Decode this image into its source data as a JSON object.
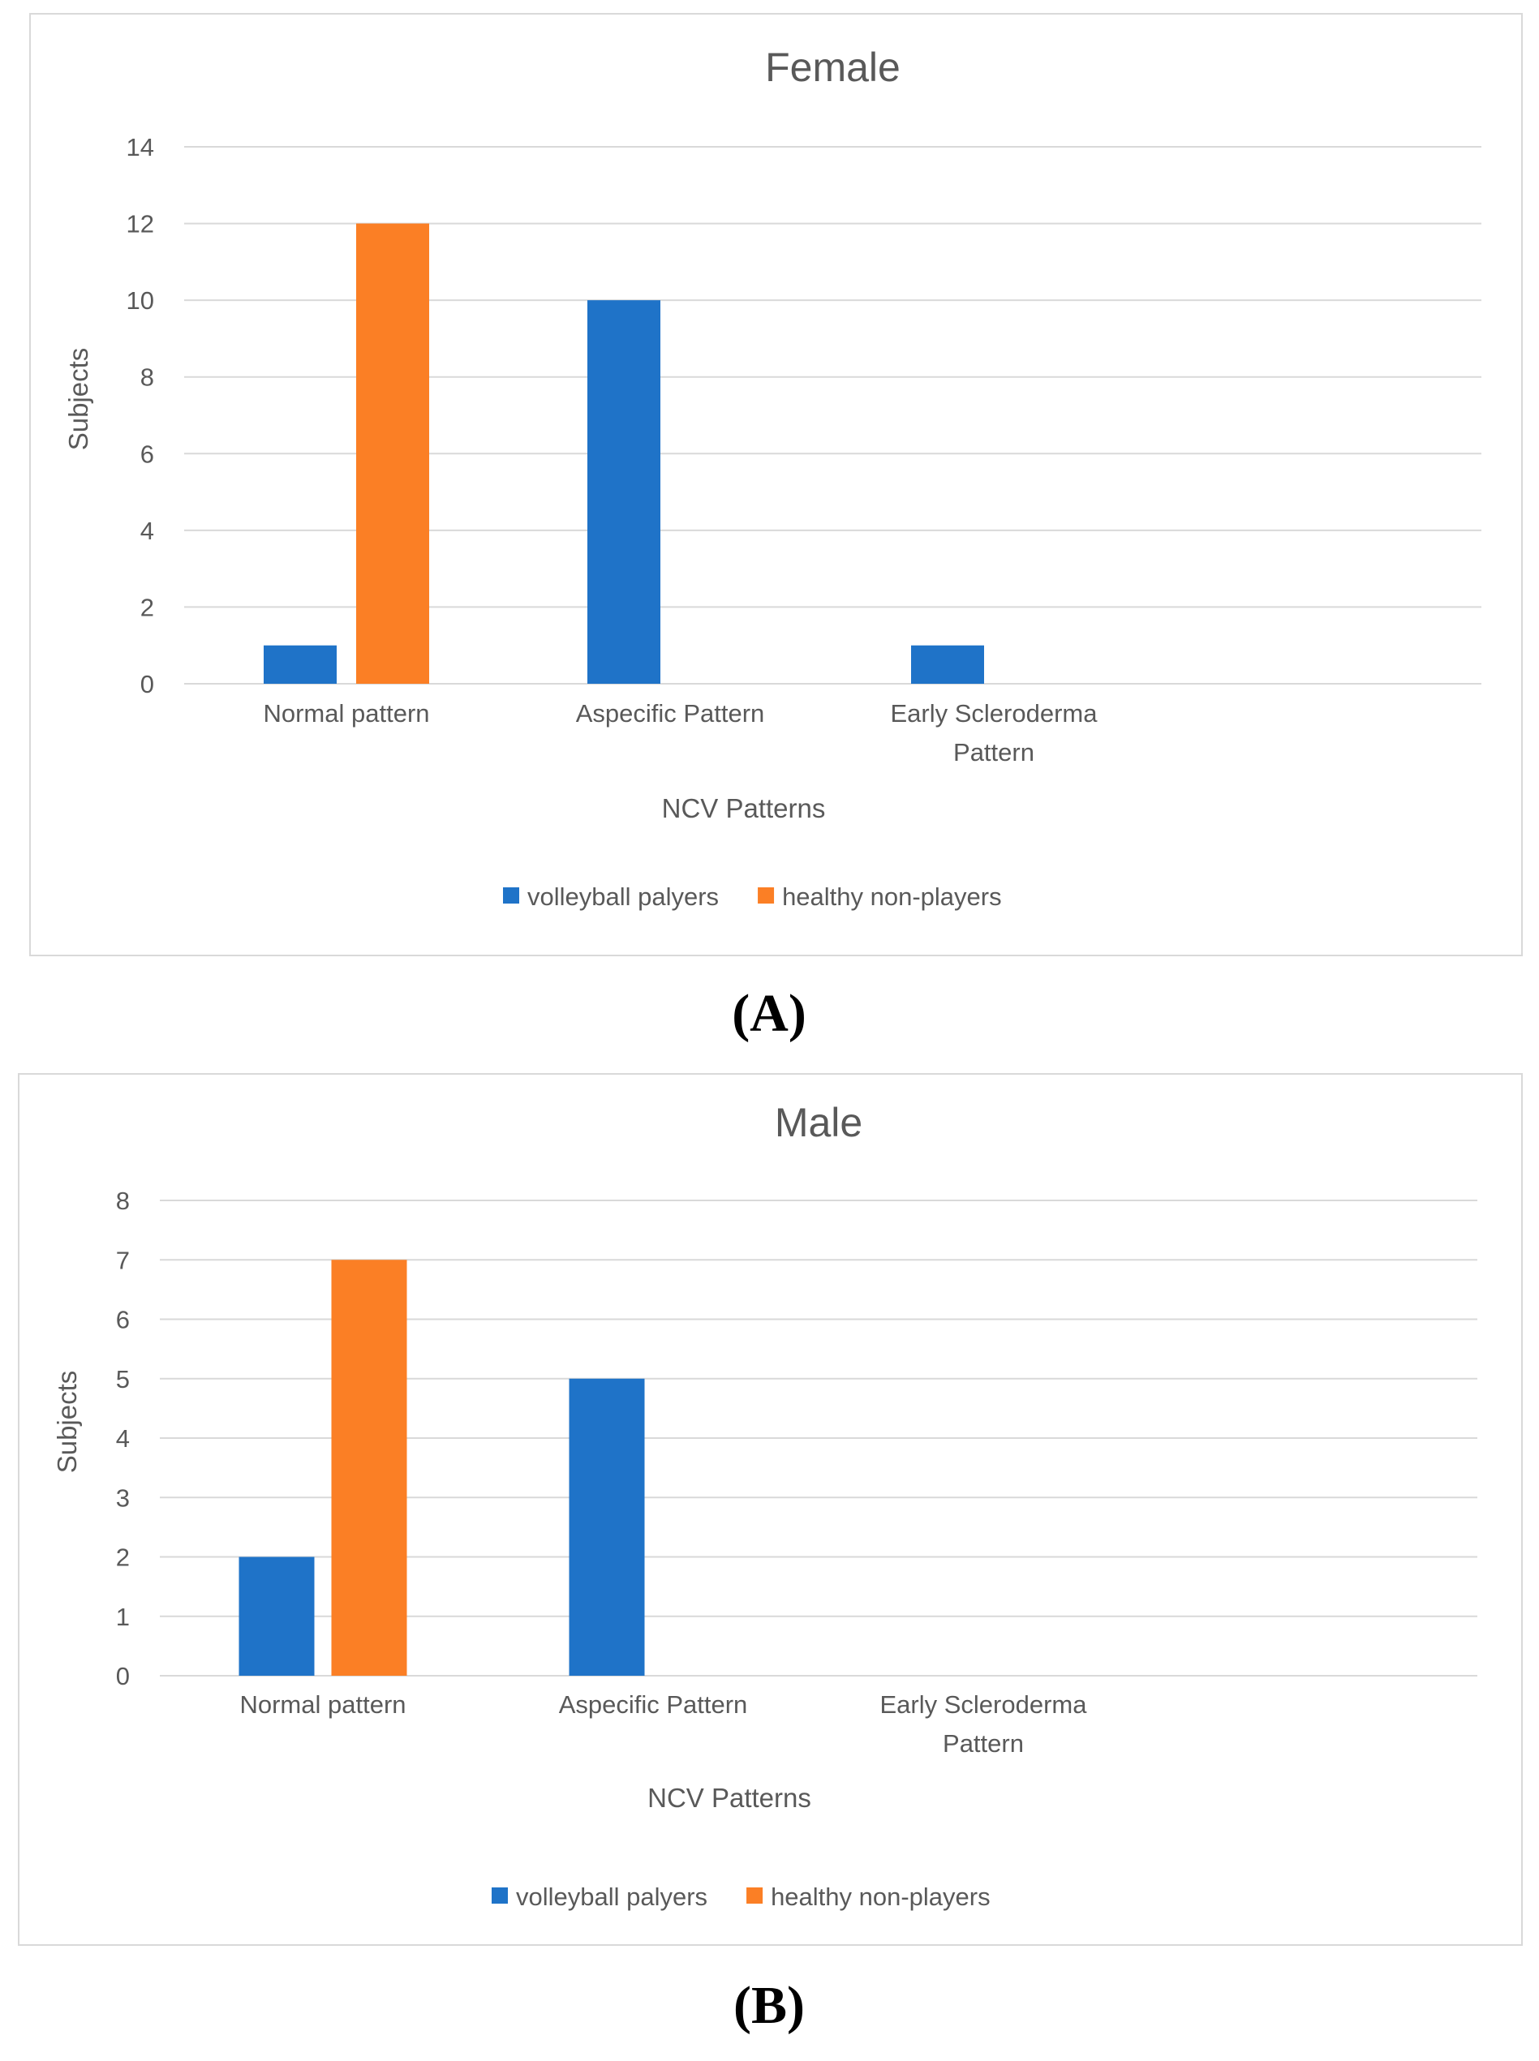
{
  "colors": {
    "series_1": "#1f73c8",
    "series_2": "#fb7f25",
    "gridline": "#d9d9d9",
    "text": "#595959"
  },
  "panels": [
    {
      "label": "(A)"
    },
    {
      "label": "(B)"
    }
  ],
  "chart_data": [
    {
      "type": "bar",
      "title": "Female",
      "xlabel": "NCV Patterns",
      "ylabel": "Subjects",
      "ylim": [
        0,
        14
      ],
      "yticks": [
        0,
        2,
        4,
        6,
        8,
        10,
        12,
        14
      ],
      "grid": true,
      "legend_position": "bottom",
      "categories": [
        [
          "Normal pattern"
        ],
        [
          "Aspecific Pattern"
        ],
        [
          "Early Scleroderma",
          "Pattern"
        ]
      ],
      "series": [
        {
          "name": "volleyball palyers",
          "values": [
            1,
            10,
            1
          ]
        },
        {
          "name": "healthy non-players",
          "values": [
            12,
            0,
            0
          ]
        }
      ]
    },
    {
      "type": "bar",
      "title": "Male",
      "xlabel": "NCV Patterns",
      "ylabel": "Subjects",
      "ylim": [
        0,
        8
      ],
      "yticks": [
        0,
        1,
        2,
        3,
        4,
        5,
        6,
        7,
        8
      ],
      "grid": true,
      "legend_position": "bottom",
      "categories": [
        [
          "Normal pattern"
        ],
        [
          "Aspecific Pattern"
        ],
        [
          "Early Scleroderma",
          "Pattern"
        ]
      ],
      "series": [
        {
          "name": "volleyball palyers",
          "values": [
            2,
            5,
            0
          ]
        },
        {
          "name": "healthy non-players",
          "values": [
            7,
            0,
            0
          ]
        }
      ]
    }
  ]
}
